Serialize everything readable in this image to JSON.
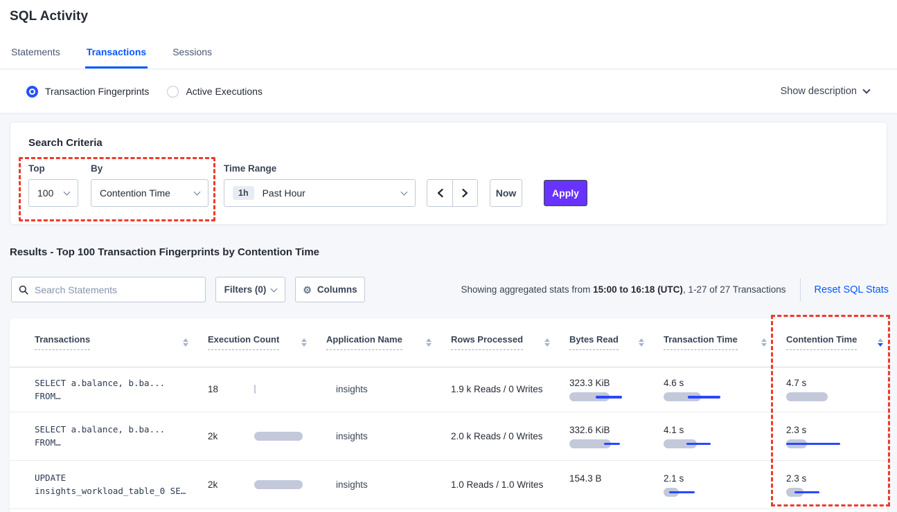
{
  "page_title": "SQL Activity",
  "tabs": [
    {
      "label": "Statements"
    },
    {
      "label": "Transactions"
    },
    {
      "label": "Sessions"
    }
  ],
  "view_toggle": {
    "fingerprints_label": "Transaction Fingerprints",
    "active_executions_label": "Active Executions",
    "show_description_label": "Show description"
  },
  "search_criteria": {
    "heading": "Search Criteria",
    "top_label": "Top",
    "top_value": "100",
    "by_label": "By",
    "by_value": "Contention Time",
    "time_range_label": "Time Range",
    "time_range_badge": "1h",
    "time_range_value": "Past Hour",
    "now_label": "Now",
    "apply_label": "Apply"
  },
  "results": {
    "heading": "Results - Top 100 Transaction Fingerprints by Contention Time",
    "search_placeholder": "Search Statements",
    "filters_label": "Filters (0)",
    "columns_label": "Columns",
    "stats_prefix": "Showing aggregated stats from ",
    "stats_range": "15:00 to 16:18 (UTC)",
    "stats_suffix": ", 1-27 of 27 Transactions",
    "reset_label": "Reset SQL Stats"
  },
  "table": {
    "headers": [
      "Transactions",
      "Execution Count",
      "Application Name",
      "Rows Processed",
      "Bytes Read",
      "Transaction Time",
      "Contention Time"
    ],
    "sort_column": "Contention Time",
    "sort_direction": "desc",
    "rows": [
      {
        "query_line1": "SELECT a.balance, b.ba...",
        "query_line2": "FROM…",
        "execution_count": "18",
        "execution_bar": 2,
        "application_name": "insights",
        "rows_processed": "1.9 k Reads / 0 Writes",
        "bytes_read": "323.3 KiB",
        "bytes_read_bar": 58,
        "bytes_read_dev": [
          38,
          76
        ],
        "transaction_time": "4.6 s",
        "transaction_time_bar": 54,
        "transaction_time_dev": [
          35,
          82
        ],
        "contention_time": "4.7 s",
        "contention_time_bar": 60,
        "contention_time_dev": null
      },
      {
        "query_line1": "SELECT a.balance, b.ba...",
        "query_line2": "FROM…",
        "execution_count": "2k",
        "execution_bar": 70,
        "application_name": "insights",
        "rows_processed": "2.0 k Reads / 0 Writes",
        "bytes_read": "332.6 KiB",
        "bytes_read_bar": 60,
        "bytes_read_dev": [
          50,
          73
        ],
        "transaction_time": "4.1 s",
        "transaction_time_bar": 48,
        "transaction_time_dev": [
          33,
          68
        ],
        "contention_time": "2.3 s",
        "contention_time_bar": 30,
        "contention_time_dev": [
          0,
          78
        ]
      },
      {
        "query_line1": "UPDATE",
        "query_line2": "insights_workload_table_0 SE…",
        "execution_count": "2k",
        "execution_bar": 70,
        "application_name": "insights",
        "rows_processed": "1.0 Reads / 1.0 Writes",
        "bytes_read": "154.3 B",
        "bytes_read_bar": null,
        "bytes_read_dev": null,
        "transaction_time": "2.1 s",
        "transaction_time_bar": 22,
        "transaction_time_dev": [
          8,
          45
        ],
        "contention_time": "2.3 s",
        "contention_time_bar": 25,
        "contention_time_dev": [
          12,
          48
        ]
      }
    ]
  },
  "colors": {
    "accent_blue": "#0458ff",
    "bar_gray": "#c3c9da",
    "bar_blue": "#2946ff",
    "apply_purple": "#6933ff",
    "highlight_red": "#ee3a2a"
  }
}
